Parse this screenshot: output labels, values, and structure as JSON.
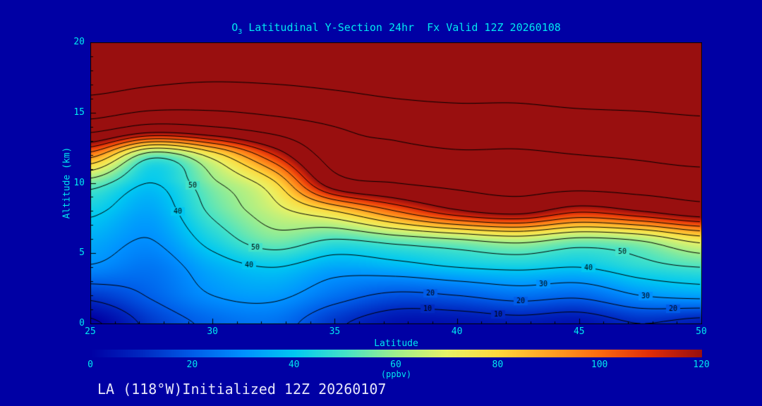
{
  "theme": {
    "background": "#0000A4",
    "accent": "#00E8F0",
    "footer_color": "#E6E6FA",
    "contour_color": "#000000"
  },
  "title": {
    "prefix": "O",
    "subscript": "3",
    "rest": " Latitudinal Y-Section 24hr  Fx Valid 12Z 20260108"
  },
  "footer": {
    "text": "LA (118°W)Initialized 12Z 20260107"
  },
  "chart_data": {
    "type": "heatmap",
    "title": "O3 Latitudinal Y-Section 24hr Fx Valid 12Z 20260108",
    "xlabel": "Latitude",
    "ylabel": "Altitude (km)",
    "xlim": [
      25,
      50
    ],
    "ylim": [
      0,
      20
    ],
    "x_ticks": [
      25,
      30,
      35,
      40,
      45,
      50
    ],
    "y_ticks": [
      0,
      5,
      10,
      15,
      20
    ],
    "colorbar": {
      "label": "(ppbv)",
      "min": 0,
      "max": 120,
      "ticks": [
        0,
        20,
        40,
        60,
        80,
        100,
        120
      ]
    },
    "units": "ppbv",
    "lats": [
      25,
      27.5,
      30,
      32.5,
      35,
      37.5,
      40,
      42.5,
      45,
      47.5,
      50
    ],
    "alts": [
      0,
      2,
      4,
      6,
      8,
      10,
      12,
      14,
      16,
      18,
      20
    ],
    "values_ppbv": [
      [
        -2,
        13,
        22,
        24,
        12,
        4,
        4,
        6,
        4,
        10,
        6
      ],
      [
        13,
        21,
        30,
        32,
        24,
        18,
        20,
        24,
        22,
        30,
        33
      ],
      [
        29,
        25,
        35,
        40,
        34,
        36,
        40,
        42,
        40,
        46,
        50
      ],
      [
        35,
        30,
        44,
        56,
        50,
        55,
        60,
        65,
        58,
        62,
        75
      ],
      [
        42,
        34,
        52,
        66,
        80,
        100,
        118,
        125,
        112,
        120,
        130
      ],
      [
        55,
        40,
        58,
        78,
        130,
        140,
        145,
        148,
        148,
        150,
        152
      ],
      [
        95,
        55,
        75,
        110,
        150,
        155,
        158,
        158,
        160,
        162,
        165
      ],
      [
        150,
        135,
        140,
        150,
        160,
        165,
        168,
        168,
        170,
        172,
        175
      ],
      [
        178,
        172,
        170,
        172,
        176,
        180,
        182,
        182,
        185,
        186,
        188
      ],
      [
        188,
        186,
        185,
        186,
        188,
        190,
        190,
        190,
        192,
        192,
        194
      ],
      [
        196,
        195,
        195,
        195,
        196,
        197,
        197,
        197,
        198,
        198,
        198
      ]
    ],
    "contour_levels": [
      0,
      10,
      20,
      30,
      40,
      50,
      60,
      70,
      80,
      90,
      100,
      110,
      120,
      140,
      160,
      180
    ],
    "contour_label_levels": [
      0,
      10,
      20,
      30,
      40,
      50
    ],
    "colormap": {
      "positions": [
        0,
        10,
        20,
        30,
        40,
        50,
        60,
        70,
        80,
        90,
        100,
        110,
        120
      ],
      "colors": [
        "#0000A4",
        "#0028C0",
        "#005CE8",
        "#0090FF",
        "#00C8F2",
        "#44E2C8",
        "#A0EE8C",
        "#E8F266",
        "#FFD83C",
        "#FFA224",
        "#FC6A10",
        "#E02C08",
        "#990F0F"
      ]
    }
  }
}
